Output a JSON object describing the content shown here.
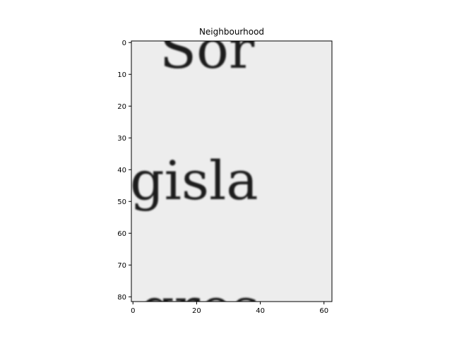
{
  "chart_data": {
    "type": "image",
    "title": "Neighbourhood",
    "xlabel": "",
    "ylabel": "",
    "image_size": {
      "width": 63,
      "height": 82
    },
    "xlim": [
      -0.5,
      62.5
    ],
    "ylim": [
      81.5,
      -0.5
    ],
    "x_ticks": [
      0,
      20,
      40,
      60
    ],
    "y_ticks": [
      0,
      10,
      20,
      30,
      40,
      50,
      60,
      70,
      80
    ],
    "grid": false,
    "colormap": "gray"
  },
  "image_content": {
    "top_fragment": "Sor",
    "middle_word": "gisla",
    "bottom_fragment": "gros"
  },
  "colors": {
    "background": "#ededed",
    "ink": "#1c1c1c",
    "axes": "#000000"
  }
}
